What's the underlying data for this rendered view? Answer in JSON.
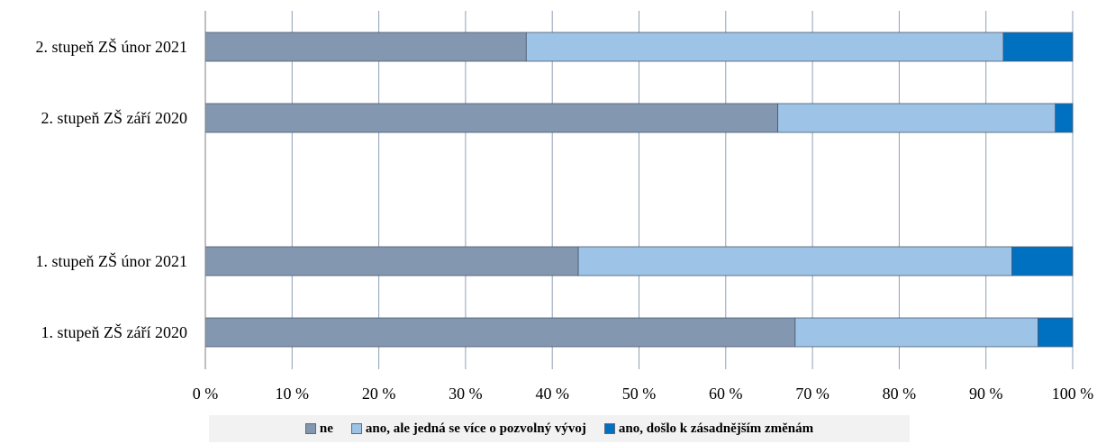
{
  "chart_data": {
    "type": "bar",
    "orientation": "horizontal",
    "stacked": "percent",
    "categories": [
      "2. stupeň ZŠ únor 2021",
      "2. stupeň ZŠ září 2020",
      "",
      "1. stupeň ZŠ únor 2021",
      "1. stupeň ZŠ září 2020"
    ],
    "series": [
      {
        "name": "ne",
        "color": "#8497b0",
        "values": [
          37,
          66,
          null,
          43,
          68
        ]
      },
      {
        "name": "ano, ale jedná se více o pozvolný vývoj",
        "color": "#9dc3e6",
        "values": [
          55,
          32,
          null,
          50,
          28
        ]
      },
      {
        "name": "ano, došlo k zásadnějším změnám",
        "color": "#0070c0",
        "values": [
          8,
          2,
          null,
          7,
          4
        ]
      }
    ],
    "xlim": [
      0,
      100
    ],
    "xticks": [
      "0 %",
      "10 %",
      "20 %",
      "30 %",
      "40 %",
      "50 %",
      "60 %",
      "70 %",
      "80 %",
      "90 %",
      "100 %"
    ],
    "grid": true,
    "legend_position": "bottom"
  }
}
